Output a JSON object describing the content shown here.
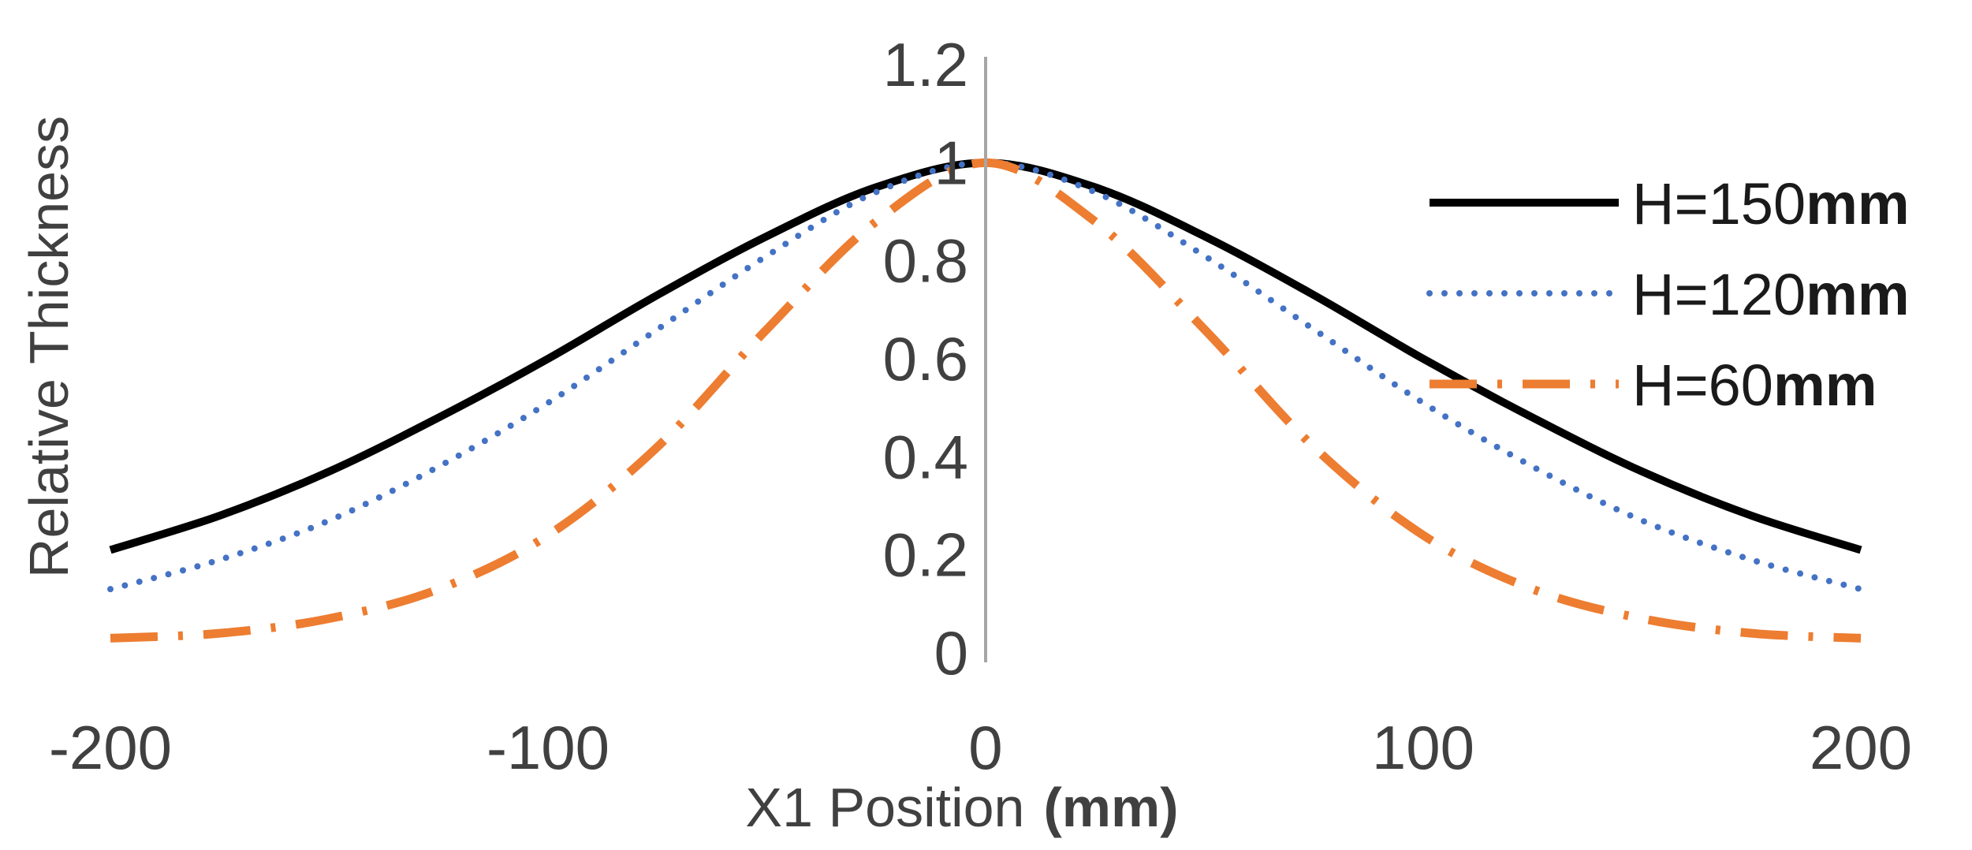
{
  "chart_data": {
    "type": "line",
    "title": "",
    "xlabel": "X1 Position",
    "xlabel_unit": "(mm)",
    "ylabel": "Relative Thickness",
    "xlim": [
      -200,
      200
    ],
    "ylim": [
      0,
      1.2
    ],
    "x_ticks": [
      "-200",
      "-100",
      "0",
      "100",
      "200"
    ],
    "y_ticks": [
      "0",
      "0.2",
      "0.4",
      "0.6",
      "0.8",
      "1",
      "1.2"
    ],
    "grid": false,
    "legend_position": "right",
    "x": [
      -200,
      -175,
      -150,
      -125,
      -100,
      -75,
      -50,
      -25,
      0,
      25,
      50,
      75,
      100,
      125,
      150,
      175,
      200
    ],
    "series": [
      {
        "name": "H=150",
        "unit": "mm",
        "color": "#000000",
        "style": "solid",
        "values": [
          0.21,
          0.28,
          0.37,
          0.48,
          0.6,
          0.73,
          0.85,
          0.95,
          1.0,
          0.95,
          0.85,
          0.73,
          0.6,
          0.48,
          0.37,
          0.28,
          0.21
        ]
      },
      {
        "name": "H=120",
        "unit": "mm",
        "color": "#4472c4",
        "style": "dotted",
        "values": [
          0.13,
          0.19,
          0.27,
          0.38,
          0.51,
          0.66,
          0.81,
          0.94,
          1.0,
          0.94,
          0.81,
          0.66,
          0.51,
          0.38,
          0.27,
          0.19,
          0.13
        ]
      },
      {
        "name": "H=60",
        "unit": "mm",
        "color": "#ed7d31",
        "style": "dash-dot",
        "values": [
          0.03,
          0.04,
          0.07,
          0.13,
          0.24,
          0.42,
          0.66,
          0.88,
          1.0,
          0.88,
          0.66,
          0.42,
          0.24,
          0.13,
          0.07,
          0.04,
          0.03
        ]
      }
    ]
  }
}
